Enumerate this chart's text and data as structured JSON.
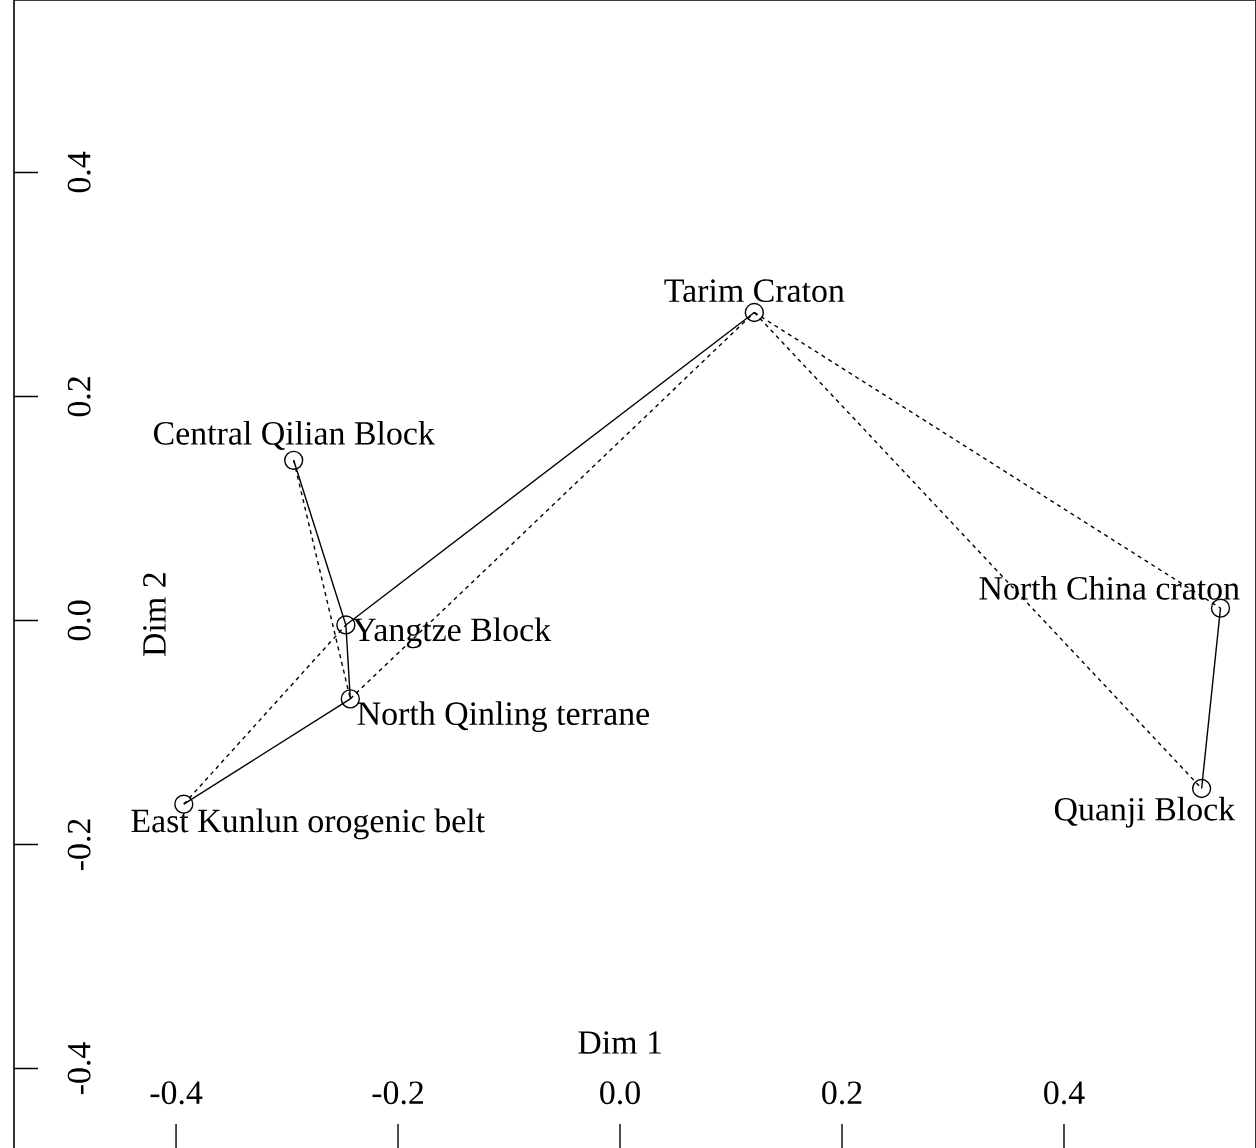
{
  "chart_data": {
    "type": "scatter",
    "xlabel": "Dim 1",
    "ylabel": "Dim 2",
    "xlim": [
      -0.546,
      0.573
    ],
    "ylim": [
      -0.471,
      0.554
    ],
    "xticks": [
      -0.4,
      -0.2,
      {
        "value": 0,
        "label": "0.0"
      },
      0.2,
      0.4
    ],
    "yticks": [
      -0.4,
      -0.2,
      {
        "value": 0,
        "label": "0.0"
      },
      0.2,
      0.4
    ],
    "series": [
      {
        "type": "line",
        "line_style": "solid",
        "color": "#000000",
        "x": [
          -0.294,
          -0.247
        ],
        "values": [
          0.143,
          -0.004
        ]
      },
      {
        "type": "line",
        "line_style": "solid",
        "color": "#000000",
        "x": [
          -0.247,
          0.121
        ],
        "values": [
          -0.004,
          0.275
        ]
      },
      {
        "type": "line",
        "line_style": "solid",
        "color": "#000000",
        "x": [
          -0.247,
          -0.243
        ],
        "values": [
          -0.004,
          -0.07
        ]
      },
      {
        "type": "line",
        "line_style": "solid",
        "color": "#000000",
        "x": [
          -0.243,
          -0.393
        ],
        "values": [
          -0.07,
          -0.164
        ]
      },
      {
        "type": "line",
        "line_style": "solid",
        "color": "#000000",
        "x": [
          0.541,
          0.524
        ],
        "values": [
          0.011,
          -0.15
        ]
      },
      {
        "type": "line",
        "line_style": "dotted",
        "color": "#000000",
        "x": [
          -0.294,
          -0.243
        ],
        "values": [
          0.143,
          -0.07
        ]
      },
      {
        "type": "line",
        "line_style": "dotted",
        "color": "#000000",
        "x": [
          -0.393,
          -0.247
        ],
        "values": [
          -0.164,
          -0.004
        ]
      },
      {
        "type": "line",
        "line_style": "dotted",
        "color": "#000000",
        "x": [
          -0.243,
          0.121
        ],
        "values": [
          -0.07,
          0.275
        ]
      },
      {
        "type": "line",
        "line_style": "dotted",
        "color": "#000000",
        "x": [
          0.121,
          0.541
        ],
        "values": [
          0.275,
          0.011
        ]
      },
      {
        "type": "line",
        "line_style": "dotted",
        "color": "#000000",
        "x": [
          0.121,
          0.524
        ],
        "values": [
          0.275,
          -0.15
        ]
      },
      {
        "marker": "circle",
        "color": "#000000",
        "x": [
          0.121,
          -0.294,
          -0.247,
          -0.243,
          -0.393,
          0.541,
          0.524
        ],
        "values": [
          0.275,
          0.143,
          -0.004,
          -0.07,
          -0.164,
          0.011,
          -0.15
        ]
      }
    ],
    "annotations": [
      {
        "text": "Tarim Craton",
        "x": 0.121,
        "y": 0.275
      },
      {
        "text": "Central Qilian Block",
        "x": -0.294,
        "y": 0.143
      },
      {
        "text": "Yangtze Block",
        "x": -0.247,
        "y": -0.004
      },
      {
        "text": "North Qinling terrane",
        "x": -0.243,
        "y": -0.07
      },
      {
        "text": "East Kunlun orogenic belt",
        "x": -0.393,
        "y": -0.164
      },
      {
        "text": "North China craton",
        "x": 0.541,
        "y": 0.011
      },
      {
        "text": "Quanji Block",
        "x": 0.524,
        "y": -0.15
      }
    ]
  }
}
